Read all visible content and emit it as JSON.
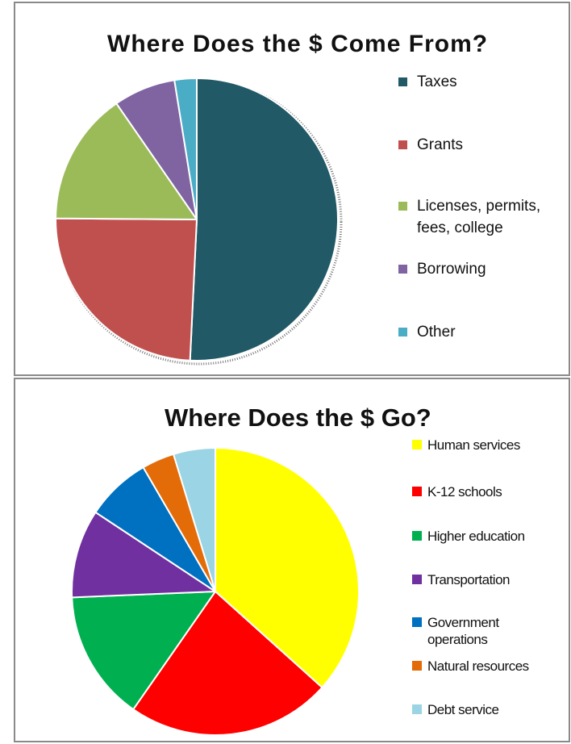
{
  "chart_data": [
    {
      "type": "pie",
      "title": "Where Does the $ Come From?",
      "categories": [
        "Taxes",
        "Grants",
        "Licenses, permits, fees, college",
        "Borrowing",
        "Other"
      ],
      "values": [
        50,
        24,
        15,
        7,
        2.5
      ],
      "colors": [
        "#215967",
        "#c0504d",
        "#9bbb59",
        "#8064a2",
        "#4bacc6"
      ],
      "legend_position": "right",
      "start_angle_deg": 0,
      "direction": "clockwise"
    },
    {
      "type": "pie",
      "title": "Where Does the $ Go?",
      "categories": [
        "Human services",
        "K-12 schools",
        "Higher education",
        "Transportation",
        "Government operations",
        "Natural resources",
        "Debt service"
      ],
      "values": [
        35,
        22,
        14,
        9.5,
        7,
        3.5,
        4.5
      ],
      "colors": [
        "#ffff00",
        "#ff0000",
        "#00b050",
        "#7030a0",
        "#0070c0",
        "#e36c09",
        "#9bd4e4"
      ],
      "legend_position": "right",
      "start_angle_deg": 0,
      "direction": "clockwise"
    }
  ]
}
